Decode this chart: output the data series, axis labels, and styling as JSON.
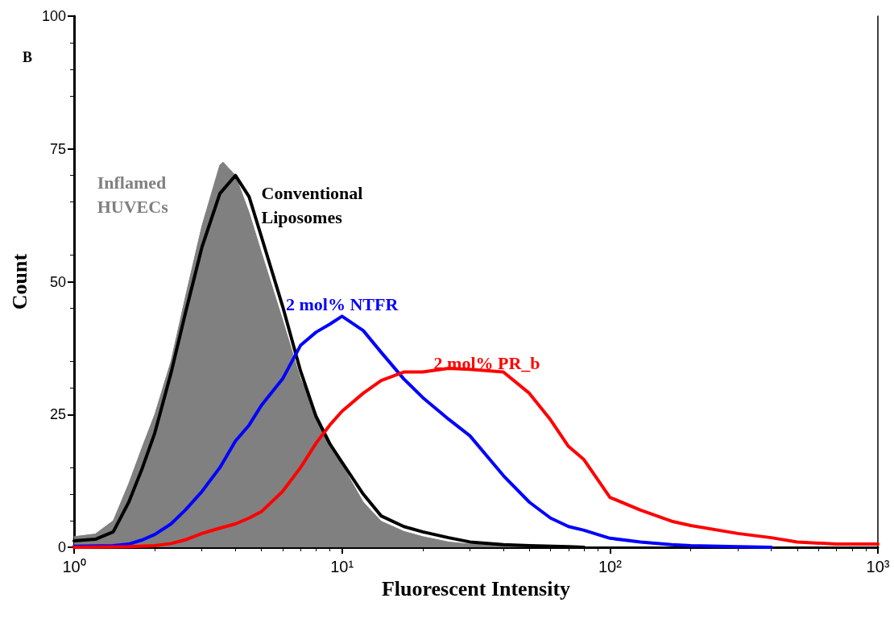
{
  "chart_data": {
    "type": "line",
    "xlabel": "Fluorescent Intensity",
    "ylabel": "Count",
    "annotations": [
      "B"
    ],
    "log": "x",
    "xlim": [
      1,
      1000
    ],
    "xticks": [
      {
        "value": 1,
        "label": "10⁰"
      },
      {
        "value": 10,
        "label": "10¹"
      },
      {
        "value": 100,
        "label": "10²"
      },
      {
        "value": 1000,
        "label": "10³"
      }
    ],
    "ylim": [
      0,
      100
    ],
    "yticks": [
      0,
      25,
      50,
      75,
      100
    ],
    "grid": false,
    "legend": false,
    "marker": "none",
    "line_style": "solid",
    "series": [
      {
        "name": "Inflamed HUVECs",
        "type": "area",
        "color": "#808080",
        "x": [
          1,
          1.2,
          1.4,
          1.6,
          1.8,
          2,
          2.3,
          2.6,
          3,
          3.5,
          3.6,
          4,
          4.5,
          5,
          6,
          7,
          8,
          9,
          10,
          12,
          14,
          17,
          20,
          25,
          30,
          40,
          50,
          60
        ],
        "values": [
          2,
          2.5,
          5,
          12,
          19,
          25,
          35,
          47,
          60.5,
          72,
          72.5,
          70,
          63,
          55.5,
          42.8,
          31.7,
          25.2,
          20,
          15.5,
          8.5,
          4.9,
          3,
          2,
          1,
          0.6,
          0.3,
          0.2,
          0
        ]
      },
      {
        "name": "Conventional Liposomes",
        "color": "#000000",
        "x": [
          1,
          1.2,
          1.4,
          1.6,
          1.8,
          2,
          2.3,
          2.6,
          3,
          3.5,
          4,
          4.5,
          5,
          6,
          7,
          8,
          9,
          10,
          12,
          14,
          17,
          20,
          25,
          30,
          40,
          50,
          70,
          80
        ],
        "values": [
          1.2,
          1.5,
          2.9,
          8.5,
          15,
          21.5,
          32.8,
          44,
          56.5,
          66.6,
          70,
          66,
          58.5,
          45.4,
          33.2,
          24.6,
          19.5,
          16,
          10,
          5.9,
          3.9,
          2.9,
          1.8,
          1,
          0.5,
          0.3,
          0.1,
          0
        ]
      },
      {
        "name": "2 mol% NTFR",
        "color": "#0000ff",
        "x": [
          1,
          1.4,
          1.6,
          1.8,
          2,
          2.3,
          2.6,
          3,
          3.5,
          4,
          4.5,
          5,
          6,
          7,
          8,
          9,
          10,
          12,
          14,
          17,
          20,
          25,
          30,
          40,
          50,
          60,
          70,
          80,
          100,
          130,
          170,
          200,
          300,
          400
        ],
        "values": [
          0.2,
          0.3,
          0.6,
          1.4,
          2.4,
          4.4,
          7,
          10.5,
          15,
          20,
          23,
          26.7,
          31.7,
          38,
          40.5,
          42,
          43.5,
          40.8,
          36.7,
          31.7,
          28.2,
          24.1,
          21,
          13.5,
          8.5,
          5.5,
          3.9,
          3.2,
          1.7,
          1,
          0.5,
          0.3,
          0.1,
          0
        ]
      },
      {
        "name": "2 mol% PR_b",
        "color": "#ff0000",
        "x": [
          1,
          1.6,
          2,
          2.3,
          2.6,
          3,
          3.5,
          4,
          4.5,
          5,
          6,
          7,
          8,
          9,
          10,
          12,
          14,
          17,
          20,
          25,
          30,
          40,
          50,
          60,
          70,
          80,
          100,
          130,
          170,
          200,
          300,
          400,
          500,
          700,
          1000
        ],
        "values": [
          0,
          0.1,
          0.3,
          0.7,
          1.4,
          2.6,
          3.6,
          4.4,
          5.5,
          6.7,
          10.5,
          15,
          19.6,
          23,
          25.6,
          29,
          31.4,
          33,
          33,
          33.7,
          33.5,
          33,
          29,
          24,
          19,
          16.5,
          9.4,
          7,
          4.9,
          4.1,
          2.6,
          1.8,
          1,
          0.6,
          0.6
        ]
      }
    ]
  }
}
